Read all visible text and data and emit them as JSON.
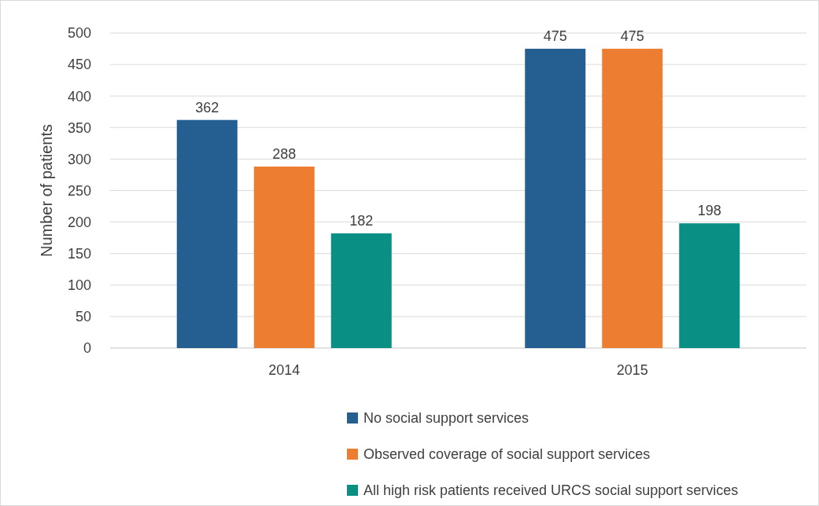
{
  "chart_data": {
    "type": "bar",
    "ylabel": "Number of patients",
    "categories": [
      "2014",
      "2015"
    ],
    "series": [
      {
        "name": "No social support services",
        "color": "#255e91",
        "values": [
          362,
          475
        ]
      },
      {
        "name": "Observed coverage of social support services",
        "color": "#ed7d31",
        "values": [
          288,
          475
        ]
      },
      {
        "name": "All high risk patients received URCS social support services",
        "color": "#0a8f84",
        "values": [
          182,
          198
        ]
      }
    ],
    "ylim": [
      0,
      500
    ],
    "yticks": [
      0,
      50,
      100,
      150,
      200,
      250,
      300,
      350,
      400,
      450,
      500
    ],
    "grid": "y",
    "data_labels": true,
    "legend": "bottom"
  }
}
